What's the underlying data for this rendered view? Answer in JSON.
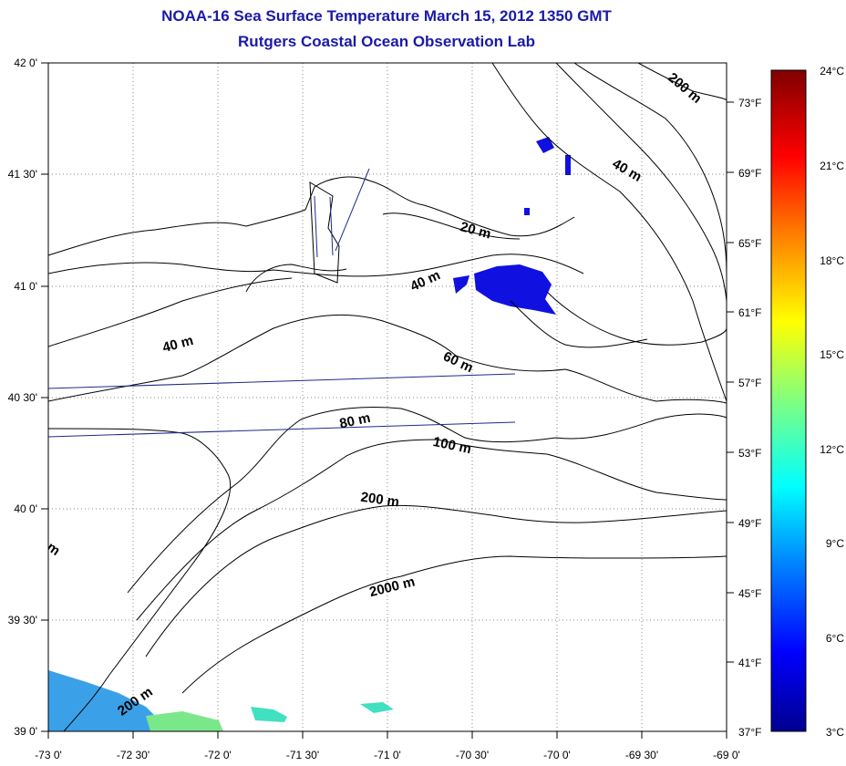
{
  "title_line1": "NOAA-16 Sea Surface Temperature March 15, 2012 1350 GMT",
  "title_line2": "Rutgers Coastal Ocean Observation Lab",
  "map": {
    "lon_ticks": [
      "-73 0'",
      "-72 30'",
      "-72 0'",
      "-71 30'",
      "-71 0'",
      "-70 30'",
      "-70 0'",
      "-69 30'",
      "-69 0'"
    ],
    "lat_ticks": [
      "42 0'",
      "41 30'",
      "41 0'",
      "40 30'",
      "40 0'",
      "39 30'",
      "39 0'"
    ]
  },
  "fahrenheit_ticks": [
    "73°F",
    "69°F",
    "65°F",
    "61°F",
    "57°F",
    "53°F",
    "49°F",
    "45°F",
    "41°F",
    "37°F"
  ],
  "colorbar_ticks": [
    "24°C",
    "21°C",
    "18°C",
    "15°C",
    "12°C",
    "9°C",
    "6°C",
    "3°C"
  ],
  "contour_labels": [
    "200 m",
    "40 m",
    "20 m",
    "40 m",
    "40 m",
    "60 m",
    "80 m",
    "100 m",
    "200 m",
    "2000 m",
    "200 m",
    "m"
  ],
  "colors": {
    "title": "#1a1aa6",
    "sst_blue": "#1010e0",
    "sst_light": "#3aa0e8",
    "track": "#1f2a8a"
  }
}
